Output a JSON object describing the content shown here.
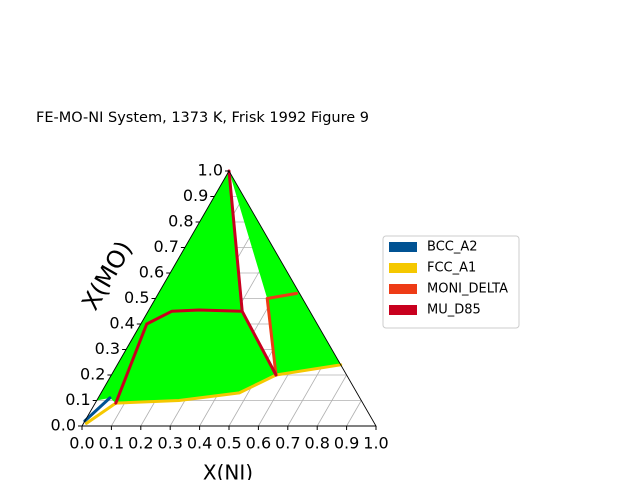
{
  "chart_data": {
    "type": "ternary",
    "title": "FE-MO-NI System, 1373 K, Frisk 1992 Figure 9",
    "xlabel": "X(NI)",
    "ylabel": "X(MO)",
    "xlim": [
      0,
      1
    ],
    "ylim": [
      0,
      1
    ],
    "xticks": [
      {
        "value": 0,
        "label": "0.0"
      },
      0.1,
      0.2,
      0.3,
      0.4,
      0.5,
      0.6,
      0.7,
      0.8,
      0.9,
      {
        "value": 1,
        "label": "1.0"
      }
    ],
    "yticks": [
      {
        "value": 0,
        "label": "0.0"
      },
      0.1,
      0.2,
      0.3,
      0.4,
      0.5,
      0.6,
      0.7,
      0.8,
      0.9,
      {
        "value": 1,
        "label": "1.0"
      }
    ],
    "grid": true,
    "legend": "right",
    "regions": [
      {
        "color": "#00ff00",
        "x": [
          0,
          0,
          0.76,
          0.56,
          0.47,
          0.28,
          0.07,
          0.04,
          null,
          0,
          0.32,
          0.56,
          0.38
        ],
        "y": [
          0.1,
          1,
          0.24,
          0.2,
          0.13,
          0.1,
          0.09,
          0.11,
          null,
          1,
          0.45,
          0.2,
          0.5
        ]
      }
    ],
    "series": [
      {
        "name": "BCC_A2",
        "color": "#005293",
        "x": [
          0,
          0.04
        ],
        "y": [
          0.02,
          0.11
        ]
      },
      {
        "name": "FCC_A1",
        "color": "#f5c800",
        "x": [
          0.01,
          0.07,
          0.28,
          0.47,
          0.56,
          0.76
        ],
        "y": [
          0.01,
          0.09,
          0.1,
          0.13,
          0.2,
          0.24
        ]
      },
      {
        "name": "MONI_DELTA",
        "color": "#ee3b16",
        "x": [
          0.38,
          0.47,
          null,
          0.38,
          0.56
        ],
        "y": [
          0.5,
          0.52,
          null,
          0.5,
          0.2
        ]
      },
      {
        "name": "MU_D85",
        "color": "#c8001e",
        "x": [
          0,
          0.32,
          null,
          0.02,
          0.08,
          0.17,
          0.32,
          null,
          0.32,
          0.56,
          null,
          0.02,
          0.07
        ],
        "y": [
          1,
          0.45,
          null,
          0.4,
          0.45,
          0.455,
          0.45,
          null,
          0.45,
          0.2,
          null,
          0.4,
          0.09
        ]
      }
    ]
  }
}
